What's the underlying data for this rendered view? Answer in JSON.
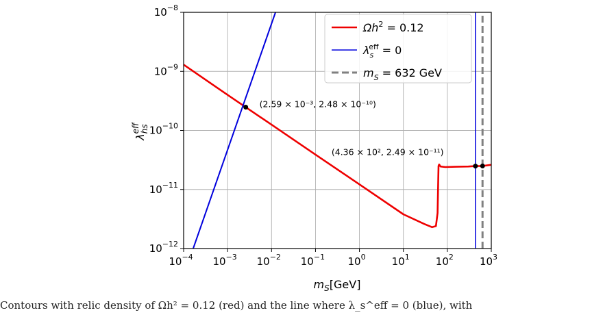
{
  "chart_data": {
    "type": "line",
    "xlabel": "m_S[GeV]",
    "ylabel": "λ_hs^eff",
    "xscale": "log",
    "yscale": "log",
    "xlim": [
      0.0001,
      1000
    ],
    "ylim": [
      1e-12,
      1e-08
    ],
    "grid": true,
    "x_ticks": [
      {
        "base": "10",
        "exp": "−4"
      },
      {
        "base": "10",
        "exp": "−3"
      },
      {
        "base": "10",
        "exp": "−2"
      },
      {
        "base": "10",
        "exp": "−1"
      },
      {
        "base": "10",
        "exp": "0"
      },
      {
        "base": "10",
        "exp": "1"
      },
      {
        "base": "10",
        "exp": "2"
      },
      {
        "base": "10",
        "exp": "3"
      }
    ],
    "y_ticks": [
      {
        "base": "10",
        "exp": "−12"
      },
      {
        "base": "10",
        "exp": "−11"
      },
      {
        "base": "10",
        "exp": "−10"
      },
      {
        "base": "10",
        "exp": "−9"
      },
      {
        "base": "10",
        "exp": "−8"
      }
    ],
    "legend_position": "top-right",
    "series": [
      {
        "name": "Ωh² = 0.12",
        "color": "#ee0000",
        "style": "solid",
        "x": [
          0.0001,
          0.001,
          0.01,
          0.1,
          1,
          10,
          30,
          45,
          55,
          60,
          63,
          65,
          70,
          90,
          150,
          300,
          436,
          632,
          1000
        ],
        "y": [
          1.3e-09,
          4e-10,
          1.25e-10,
          3.9e-11,
          1.22e-11,
          3.8e-12,
          2.6e-12,
          2.3e-12,
          2.4e-12,
          4e-12,
          2.5e-11,
          2.65e-11,
          2.45e-11,
          2.4e-11,
          2.42e-11,
          2.45e-11,
          2.49e-11,
          2.5e-11,
          2.62e-11
        ]
      },
      {
        "name": "λ_s^eff = 0",
        "color": "#0000dd",
        "style": "solid",
        "segments": [
          {
            "x": [
              0.000165,
              0.0123
            ],
            "y": [
              1e-12,
              1e-08
            ]
          },
          {
            "x": [
              436,
              436
            ],
            "y": [
              1e-12,
              1e-08
            ]
          }
        ]
      },
      {
        "name": "m_S = 632 GeV",
        "color": "#808080",
        "style": "dashed",
        "x": [
          632,
          632
        ],
        "y": [
          1e-12,
          1e-08
        ]
      }
    ],
    "points": [
      {
        "x": 0.00259,
        "y": 2.48e-10
      },
      {
        "x": 436,
        "y": 2.49e-11
      },
      {
        "x": 632,
        "y": 2.5e-11
      }
    ],
    "annotations": [
      {
        "text": "(2.59 × 10⁻³, 2.48 × 10⁻¹⁰)",
        "x": 0.00259,
        "y": 2.48e-10
      },
      {
        "text": "(4.36 × 10², 2.49 × 10⁻¹¹)",
        "x": 436,
        "y": 2.49e-11
      }
    ],
    "legend": [
      {
        "lhs": "Ωh",
        "sup": "2",
        "rhs": " = 0.12"
      },
      {
        "lhs": "λ",
        "sub": "s",
        "sup": "eff",
        "rhs": " = 0"
      },
      {
        "lhs": "m",
        "sub": "S",
        "rhs": " = 632 GeV"
      }
    ]
  },
  "caption": "Contours with relic density of Ωh² = 0.12 (red) and the line where λ_s^eff = 0 (blue), with"
}
